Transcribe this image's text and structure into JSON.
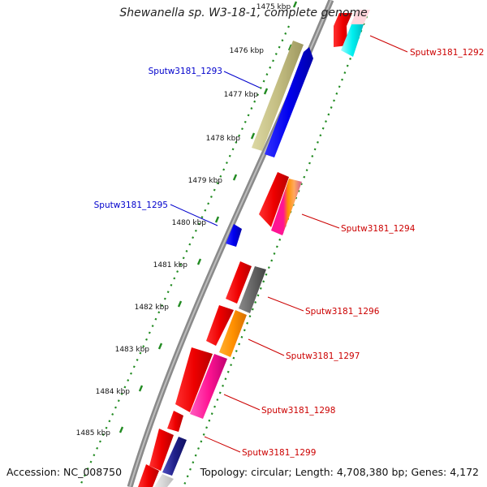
{
  "title": "Shewanella sp. W3-18-1, complete genome",
  "accession": "Accession: NC_008750",
  "topology": "Topology: circular; Length: 4,708,380 bp; Genes: 4,172",
  "colors": {
    "forward_label": "#0000cc",
    "reverse_label": "#cc0000",
    "backbone": "#888888",
    "dots": "#228b22"
  },
  "kbp_labels": [
    "1475 kbp",
    "1476 kbp",
    "1477 kbp",
    "1478 kbp",
    "1479 kbp",
    "1480 kbp",
    "1481 kbp",
    "1482 kbp",
    "1483 kbp",
    "1484 kbp",
    "1485 kbp"
  ],
  "gene_labels": [
    {
      "text": "Sputw3181_1292",
      "strand": "reverse"
    },
    {
      "text": "Sputw3181_1293",
      "strand": "forward"
    },
    {
      "text": "Sputw3181_1294",
      "strand": "reverse"
    },
    {
      "text": "Sputw3181_1295",
      "strand": "forward"
    },
    {
      "text": "Sputw3181_1296",
      "strand": "reverse"
    },
    {
      "text": "Sputw3181_1297",
      "strand": "reverse"
    },
    {
      "text": "Sputw3181_1298",
      "strand": "reverse"
    },
    {
      "text": "Sputw3181_1299",
      "strand": "reverse"
    }
  ]
}
